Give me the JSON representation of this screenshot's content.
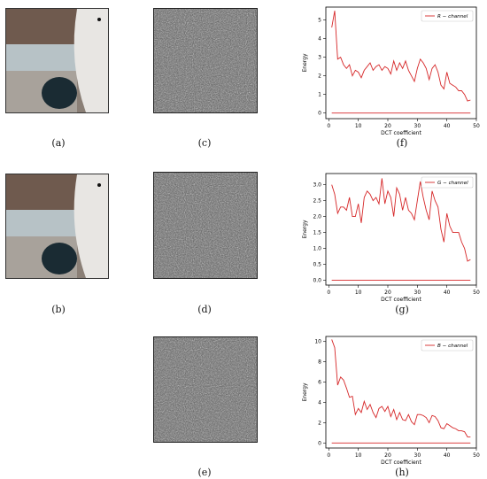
{
  "captions": {
    "a": "(a)",
    "b": "(b)",
    "c": "(c)",
    "d": "(d)",
    "e": "(e)",
    "f": "(f)",
    "g": "(g)",
    "h": "(h)"
  },
  "colors": {
    "series": "#d62728",
    "baseline": "#d62728"
  },
  "chart_data": [
    {
      "type": "line",
      "xlabel": "DCT coefficient",
      "ylabel": "Energy",
      "xlim": [
        -1,
        50
      ],
      "ylim": [
        -0.3,
        5.7
      ],
      "xticks": [
        "0",
        "10",
        "20",
        "30",
        "40",
        "50"
      ],
      "yticks": [
        "0",
        "1",
        "2",
        "3",
        "4",
        "5"
      ],
      "legend": "top-right",
      "series": [
        {
          "name": "R − channel",
          "x": [
            1,
            2,
            3,
            4,
            5,
            6,
            7,
            8,
            9,
            10,
            11,
            12,
            13,
            14,
            15,
            16,
            17,
            18,
            19,
            20,
            21,
            22,
            23,
            24,
            25,
            26,
            27,
            28,
            29,
            30,
            31,
            32,
            33,
            34,
            35,
            36,
            37,
            38,
            39,
            40,
            41,
            42,
            43,
            44,
            45,
            46,
            47,
            48
          ],
          "values": [
            4.6,
            5.5,
            2.9,
            3.0,
            2.6,
            2.4,
            2.6,
            2.0,
            2.3,
            2.2,
            1.9,
            2.3,
            2.5,
            2.7,
            2.3,
            2.5,
            2.6,
            2.3,
            2.5,
            2.4,
            2.1,
            2.8,
            2.3,
            2.7,
            2.4,
            2.8,
            2.3,
            2.0,
            1.7,
            2.4,
            2.9,
            2.7,
            2.4,
            1.8,
            2.4,
            2.6,
            2.2,
            1.5,
            1.3,
            2.2,
            1.6,
            1.5,
            1.4,
            1.2,
            1.2,
            1.0,
            0.65,
            0.7
          ]
        },
        {
          "name": "",
          "x": [
            1,
            48
          ],
          "values": [
            0,
            0
          ]
        }
      ]
    },
    {
      "type": "line",
      "xlabel": "DCT coefficient",
      "ylabel": "Energy",
      "xlim": [
        -1,
        50
      ],
      "ylim": [
        -0.15,
        3.35
      ],
      "xticks": [
        "0",
        "10",
        "20",
        "30",
        "40",
        "50"
      ],
      "yticks": [
        "0.0",
        "0.5",
        "1.0",
        "1.5",
        "2.0",
        "2.5",
        "3.0"
      ],
      "legend": "top-right",
      "series": [
        {
          "name": "G − channel",
          "x": [
            1,
            2,
            3,
            4,
            5,
            6,
            7,
            8,
            9,
            10,
            11,
            12,
            13,
            14,
            15,
            16,
            17,
            18,
            19,
            20,
            21,
            22,
            23,
            24,
            25,
            26,
            27,
            28,
            29,
            30,
            31,
            32,
            33,
            34,
            35,
            36,
            37,
            38,
            39,
            40,
            41,
            42,
            43,
            44,
            45,
            46,
            47,
            48
          ],
          "values": [
            3.0,
            2.7,
            2.1,
            2.3,
            2.3,
            2.2,
            2.6,
            2.0,
            2.0,
            2.4,
            1.8,
            2.6,
            2.8,
            2.7,
            2.5,
            2.6,
            2.4,
            3.2,
            2.4,
            2.8,
            2.6,
            2.0,
            2.9,
            2.7,
            2.2,
            2.6,
            2.2,
            2.1,
            1.9,
            2.5,
            3.1,
            2.6,
            2.2,
            1.9,
            2.8,
            2.5,
            2.3,
            1.6,
            1.2,
            2.1,
            1.7,
            1.5,
            1.5,
            1.5,
            1.2,
            1.0,
            0.6,
            0.65
          ]
        },
        {
          "name": "",
          "x": [
            1,
            48
          ],
          "values": [
            0,
            0
          ]
        }
      ]
    },
    {
      "type": "line",
      "xlabel": "DCT coefficient",
      "ylabel": "Energy",
      "xlim": [
        -1,
        50
      ],
      "ylim": [
        -0.5,
        10.5
      ],
      "xticks": [
        "0",
        "10",
        "20",
        "30",
        "40",
        "50"
      ],
      "yticks": [
        "0",
        "2",
        "4",
        "6",
        "8",
        "10"
      ],
      "legend": "top-right",
      "series": [
        {
          "name": "B − channel",
          "x": [
            1,
            2,
            3,
            4,
            5,
            6,
            7,
            8,
            9,
            10,
            11,
            12,
            13,
            14,
            15,
            16,
            17,
            18,
            19,
            20,
            21,
            22,
            23,
            24,
            25,
            26,
            27,
            28,
            29,
            30,
            31,
            32,
            33,
            34,
            35,
            36,
            37,
            38,
            39,
            40,
            41,
            42,
            43,
            44,
            45,
            46,
            47,
            48
          ],
          "values": [
            10.2,
            9.4,
            5.7,
            6.5,
            6.2,
            5.4,
            4.5,
            4.6,
            2.8,
            3.4,
            3.0,
            4.1,
            3.3,
            3.8,
            3.0,
            2.5,
            3.4,
            3.6,
            3.1,
            3.6,
            2.6,
            3.3,
            2.3,
            3.0,
            2.3,
            2.2,
            2.8,
            2.1,
            1.8,
            2.8,
            2.8,
            2.7,
            2.5,
            2.0,
            2.7,
            2.6,
            2.2,
            1.5,
            1.4,
            1.9,
            1.7,
            1.5,
            1.4,
            1.2,
            1.2,
            1.1,
            0.6,
            0.6
          ]
        },
        {
          "name": "",
          "x": [
            1,
            48
          ],
          "values": [
            0,
            0
          ]
        }
      ]
    }
  ]
}
